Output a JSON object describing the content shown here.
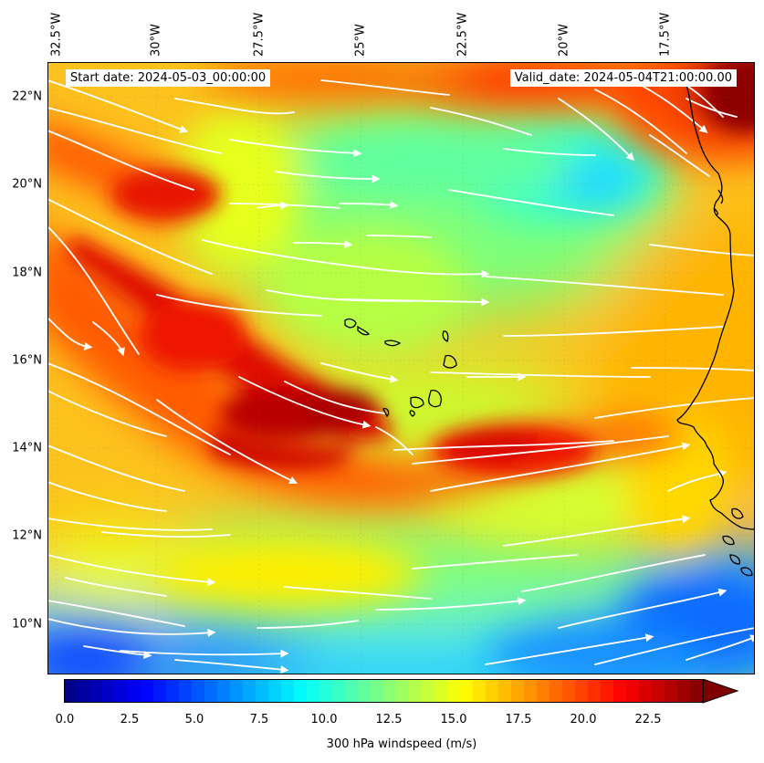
{
  "lon_labels": [
    "32.5°W",
    "30°W",
    "27.5°W",
    "25°W",
    "22.5°W",
    "20°W",
    "17.5°W"
  ],
  "lat_labels": [
    "22°N",
    "20°N",
    "18°N",
    "16°N",
    "14°N",
    "12°N",
    "10°N"
  ],
  "start_date": "Start date: 2024-05-03_00:00:00",
  "valid_date": "Valid_date: 2024-05-04T21:00:00.00",
  "colorbar": {
    "ticks": [
      "0.0",
      "2.5",
      "5.0",
      "7.5",
      "10.0",
      "12.5",
      "15.0",
      "17.5",
      "20.0",
      "22.5"
    ],
    "label": "300 hPa windspeed (m/s)",
    "colormap": "jet",
    "range": [
      0,
      25
    ],
    "extend": "max"
  },
  "map": {
    "field": "300 hPa windspeed",
    "units": "m/s",
    "lon_range": [
      -32.5,
      -15.2
    ],
    "lat_range": [
      8.9,
      22.8
    ],
    "streamline_color": "#ffffff",
    "coastline_color": "#000000"
  }
}
